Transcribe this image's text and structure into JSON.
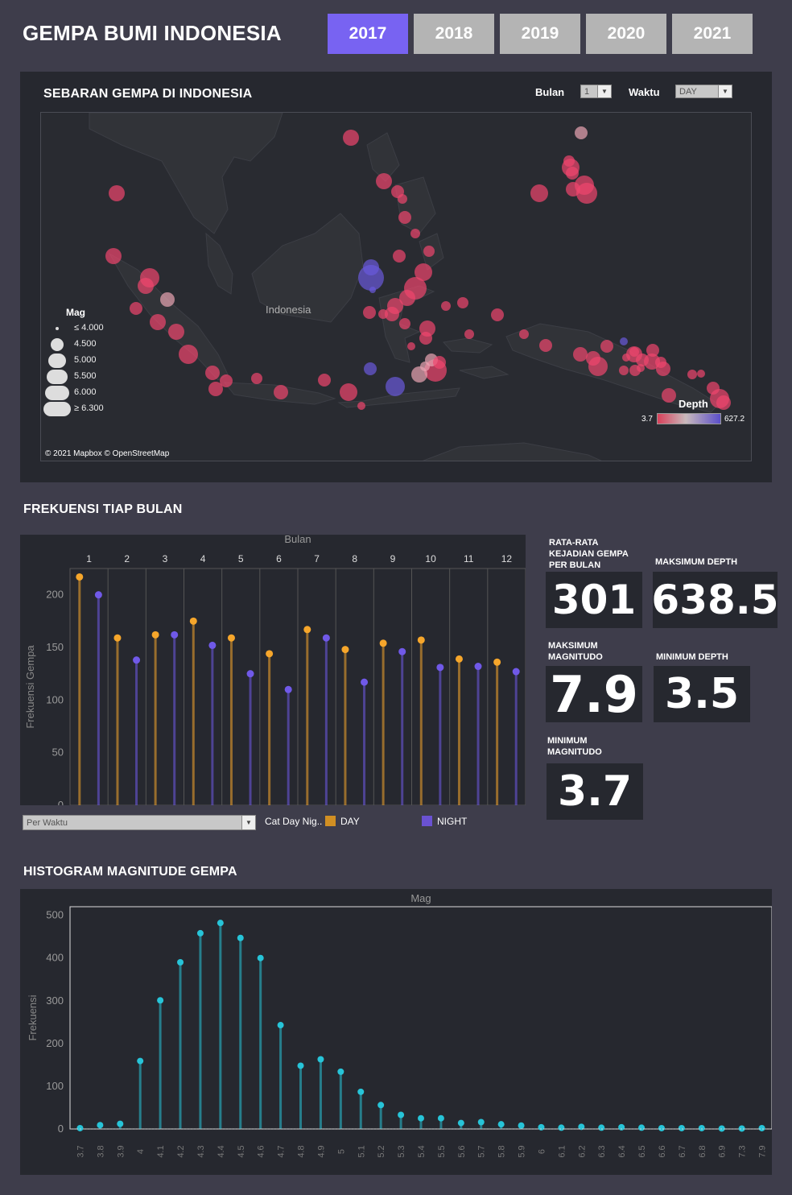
{
  "header": {
    "title": "GEMPA BUMI INDONESIA",
    "years": [
      "2017",
      "2018",
      "2019",
      "2020",
      "2021"
    ],
    "active_year": "2017"
  },
  "map": {
    "title": "SEBARAN GEMPA DI INDONESIA",
    "bulan_label": "Bulan",
    "bulan_value": "1",
    "waktu_label": "Waktu",
    "waktu_value": "DAY",
    "region_label": "Indonesia",
    "attribution": "© 2021 Mapbox © OpenStreetMap",
    "mag_legend_title": "Mag",
    "mag_legend": [
      "≤ 4.000",
      "4.500",
      "5.000",
      "5.500",
      "6.000",
      "≥ 6.300"
    ],
    "depth_legend_title": "Depth",
    "depth_min": "3.7",
    "depth_max": "627.2",
    "colors": {
      "shallow": "#f0466e",
      "deep": "#6a5adc"
    }
  },
  "freq": {
    "section_title": "FREKUENSI TIAP BULAN",
    "dropdown_value": "Per Waktu",
    "legend_title": "Cat Day Nig..",
    "legend_day": "DAY",
    "legend_night": "NIGHT"
  },
  "kpis": {
    "avg_label": "RATA-RATA KEJADIAN GEMPA PER BULAN",
    "avg_value": "301",
    "max_depth_label": "MAKSIMUM DEPTH",
    "max_depth_value": "638.5",
    "max_mag_label": "MAKSIMUM MAGNITUDO",
    "max_mag_value": "7.9",
    "min_depth_label": "MINIMUM DEPTH",
    "min_depth_value": "3.5",
    "min_mag_label": "MINIMUM MAGNITUDO",
    "min_mag_value": "3.7",
    "colors": {
      "avg": "#27c4d8",
      "max_depth": "#f6a62b",
      "max_mag": "#f04465",
      "min_depth": "#27c4d8",
      "min_mag": "#7059e8"
    }
  },
  "hist": {
    "section_title": "HISTOGRAM MAGNITUDE GEMPA"
  },
  "chart_data": [
    {
      "type": "lollipop",
      "title": "Bulan",
      "xlabel": "Bulan",
      "ylabel": "Frekuensi Gempa",
      "categories": [
        "1",
        "2",
        "3",
        "4",
        "5",
        "6",
        "7",
        "8",
        "9",
        "10",
        "11",
        "12"
      ],
      "yticks": [
        0,
        50,
        100,
        150,
        200
      ],
      "ylim": [
        0,
        225
      ],
      "series": [
        {
          "name": "DAY",
          "color": "#f6a62b",
          "values": [
            217,
            159,
            162,
            175,
            159,
            144,
            167,
            148,
            154,
            157,
            139,
            136
          ]
        },
        {
          "name": "NIGHT",
          "color": "#7059e8",
          "values": [
            200,
            138,
            162,
            152,
            125,
            110,
            159,
            117,
            146,
            131,
            132,
            127
          ]
        }
      ]
    },
    {
      "type": "lollipop",
      "title": "Mag",
      "xlabel": "Mag",
      "ylabel": "Frekuensi",
      "categories": [
        "3.7",
        "3.8",
        "3.9",
        "4",
        "4.1",
        "4.2",
        "4.3",
        "4.4",
        "4.5",
        "4.6",
        "4.7",
        "4.8",
        "4.9",
        "5",
        "5.1",
        "5.2",
        "5.3",
        "5.4",
        "5.5",
        "5.6",
        "5.7",
        "5.8",
        "5.9",
        "6",
        "6.1",
        "6.2",
        "6.3",
        "6.4",
        "6.5",
        "6.6",
        "6.7",
        "6.8",
        "6.9",
        "7.3",
        "7.9"
      ],
      "yticks": [
        0,
        100,
        200,
        300,
        400,
        500
      ],
      "ylim": [
        0,
        520
      ],
      "series": [
        {
          "name": "",
          "color": "#27c4d8",
          "values": [
            2,
            9,
            12,
            159,
            301,
            390,
            458,
            482,
            447,
            400,
            243,
            148,
            163,
            134,
            87,
            56,
            33,
            25,
            25,
            14,
            16,
            11,
            8,
            4,
            3,
            5,
            3,
            4,
            3,
            2,
            2,
            2,
            1,
            1,
            2
          ]
        }
      ]
    }
  ]
}
